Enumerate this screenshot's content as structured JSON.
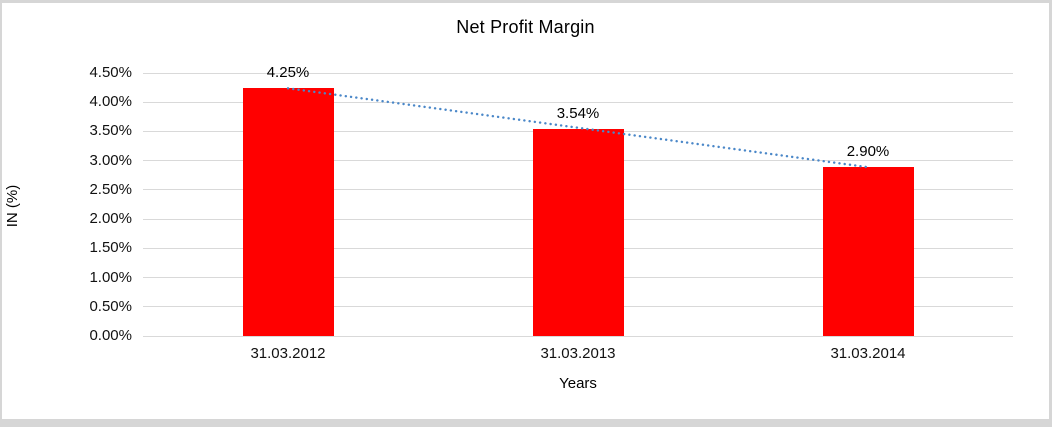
{
  "frame": {
    "background": "#ffffff",
    "border_color": "#d6d6d6"
  },
  "chart_data": {
    "type": "bar",
    "title": "Net Profit Margin",
    "xlabel": "Years",
    "ylabel": "IN (%)",
    "categories": [
      "31.03.2012",
      "31.03.2013",
      "31.03.2014"
    ],
    "values": [
      4.25,
      3.54,
      2.9
    ],
    "data_labels": [
      "4.25%",
      "3.54%",
      "2.90%"
    ],
    "ylim": [
      0,
      4.5
    ],
    "ytick_step": 0.5,
    "ytick_labels": [
      "0.00%",
      "0.50%",
      "1.00%",
      "1.50%",
      "2.00%",
      "2.50%",
      "3.00%",
      "3.50%",
      "4.00%",
      "4.50%"
    ],
    "grid": "horizontal-major",
    "gridline_color": "#d9d9d9",
    "bar_color": "#ff0000",
    "legend_position": "none",
    "trendline": {
      "type": "linear",
      "style": "dotted",
      "color": "#4a87c8"
    }
  }
}
